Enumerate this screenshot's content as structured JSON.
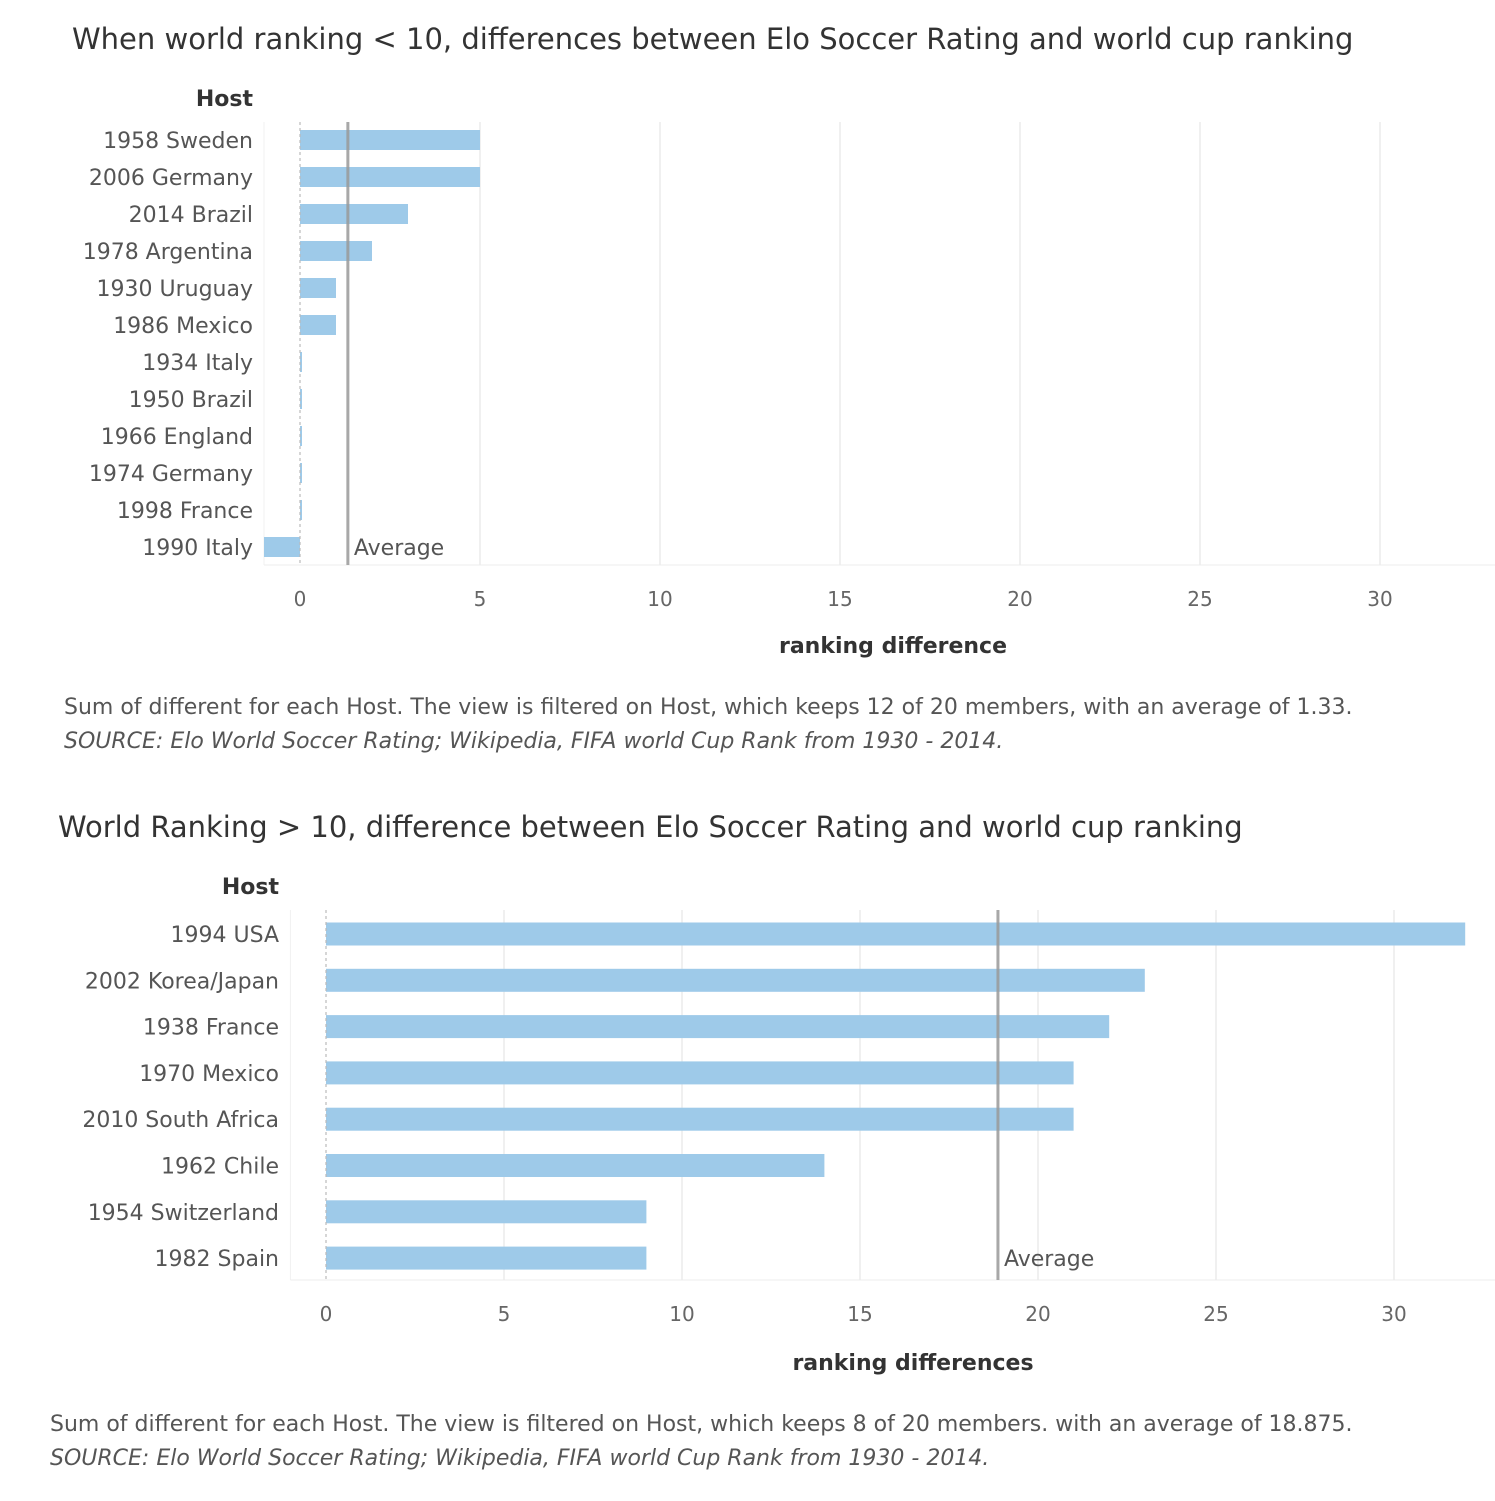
{
  "colors": {
    "bar": "#9ecae9",
    "grid": "#ececec",
    "average_line": "#9a9a9a",
    "zero_line": "#bbbbbb"
  },
  "charts": [
    {
      "title": "When world ranking < 10,  differences between Elo Soccer Rating and world cup ranking",
      "caption": "Sum of different for each Host. The view is filtered on Host, which keeps 12 of 20 members, with an average of 1.33.",
      "source": "SOURCE: Elo World Soccer Rating; Wikipedia, FIFA world Cup Rank from 1930 - 2014."
    },
    {
      "title": "World Ranking > 10, difference between Elo Soccer Rating and world cup ranking",
      "caption": "Sum of different for each Host. The view is filtered on Host, which keeps 8 of 20 members. with an average of 18.875.",
      "source": "SOURCE: Elo World Soccer Rating; Wikipedia, FIFA world Cup Rank from 1930 - 2014."
    }
  ],
  "chart_data": [
    {
      "type": "bar",
      "orientation": "horizontal",
      "row_header": "Host",
      "xlabel": "ranking difference",
      "xlim": [
        -1,
        33
      ],
      "xticks": [
        0,
        5,
        10,
        15,
        20,
        25,
        30
      ],
      "grid": true,
      "average": 1.33,
      "average_label": "Average",
      "categories": [
        "1958 Sweden",
        "2006 Germany",
        "2014 Brazil",
        "1978 Argentina",
        "1930 Uruguay",
        "1986 Mexico",
        "1934 Italy",
        "1950 Brazil",
        "1966 England",
        "1974 Germany",
        "1998 France",
        "1990 Italy"
      ],
      "values": [
        5,
        5,
        3,
        2,
        1,
        1,
        0,
        0,
        0,
        0,
        0,
        -1
      ]
    },
    {
      "type": "bar",
      "orientation": "horizontal",
      "row_header": "Host",
      "xlabel": "ranking differences",
      "xlim": [
        -1,
        33
      ],
      "xticks": [
        0,
        5,
        10,
        15,
        20,
        25,
        30
      ],
      "grid": true,
      "average": 18.875,
      "average_label": "Average",
      "categories": [
        "1994 USA",
        "2002 Korea/Japan",
        "1938 France",
        "1970 Mexico",
        "2010 South Africa",
        "1962 Chile",
        "1954 Switzerland",
        "1982 Spain"
      ],
      "values": [
        32,
        23,
        22,
        21,
        21,
        14,
        9,
        9
      ]
    }
  ]
}
